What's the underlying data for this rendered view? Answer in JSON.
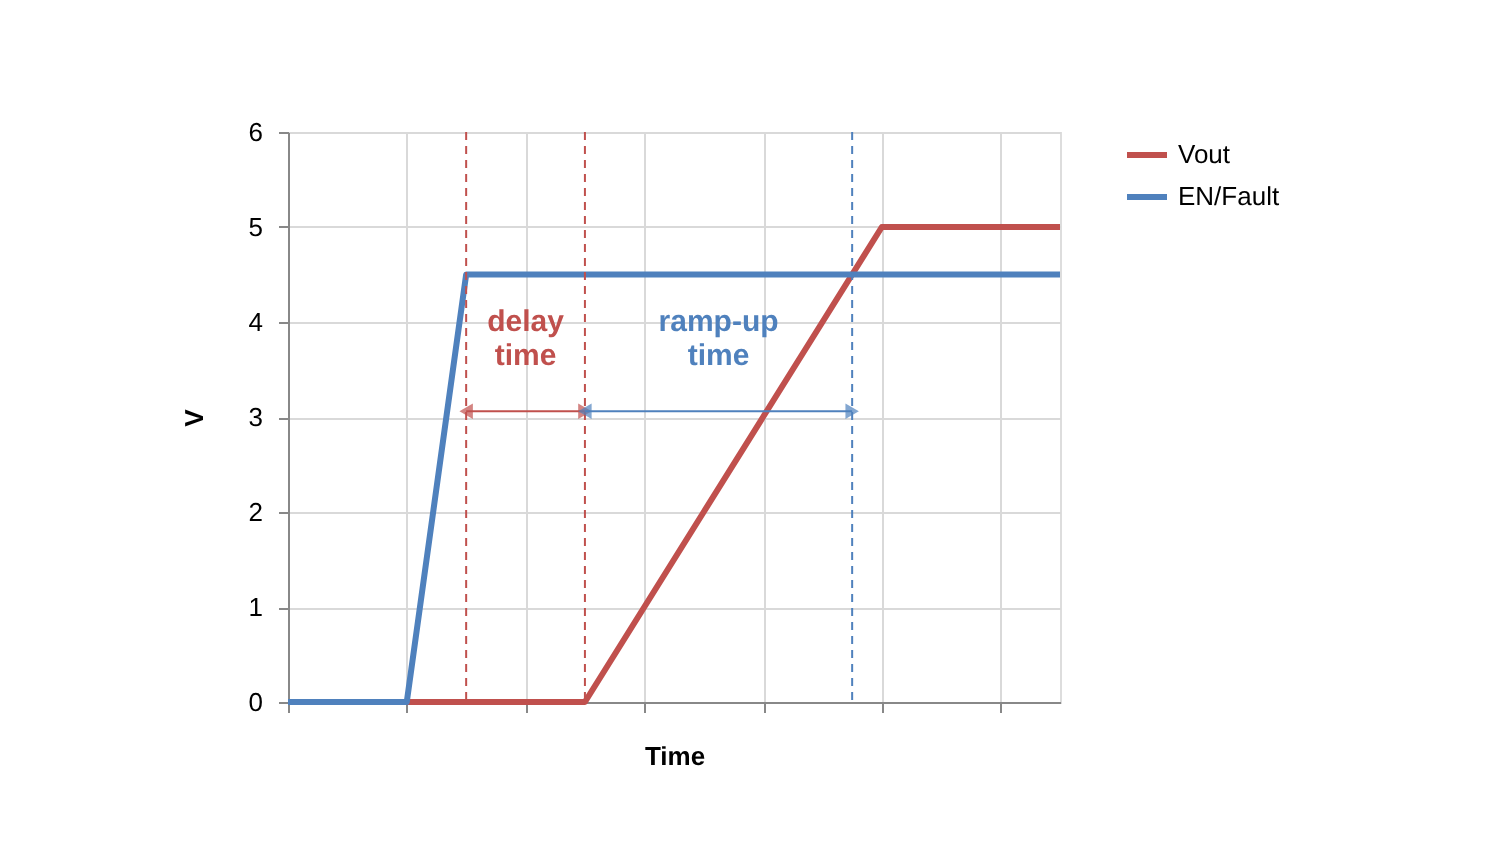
{
  "chart_data": {
    "type": "line",
    "xlabel": "Time",
    "ylabel": "V",
    "categories": [
      null,
      null,
      null,
      null,
      null,
      null,
      null,
      null,
      null,
      null,
      null,
      null,
      null,
      null
    ],
    "series": [
      {
        "name": "Vout",
        "color": "#c0504d",
        "values": [
          0,
          0,
          0,
          0,
          0,
          0,
          1,
          2,
          3,
          4,
          5,
          5,
          5,
          5
        ]
      },
      {
        "name": "EN/Fault",
        "color": "#4f81bd",
        "values": [
          0,
          0,
          0,
          4.5,
          4.5,
          4.5,
          4.5,
          4.5,
          4.5,
          4.5,
          4.5,
          4.5,
          4.5,
          4.5
        ]
      }
    ],
    "ylim": [
      0,
      6
    ],
    "yticks": [
      0,
      1,
      2,
      3,
      4,
      5,
      6
    ],
    "grid": true,
    "legend": "right",
    "marker": "none",
    "line_style": "solid",
    "annotations": [
      "delay time",
      "ramp-up time"
    ]
  }
}
